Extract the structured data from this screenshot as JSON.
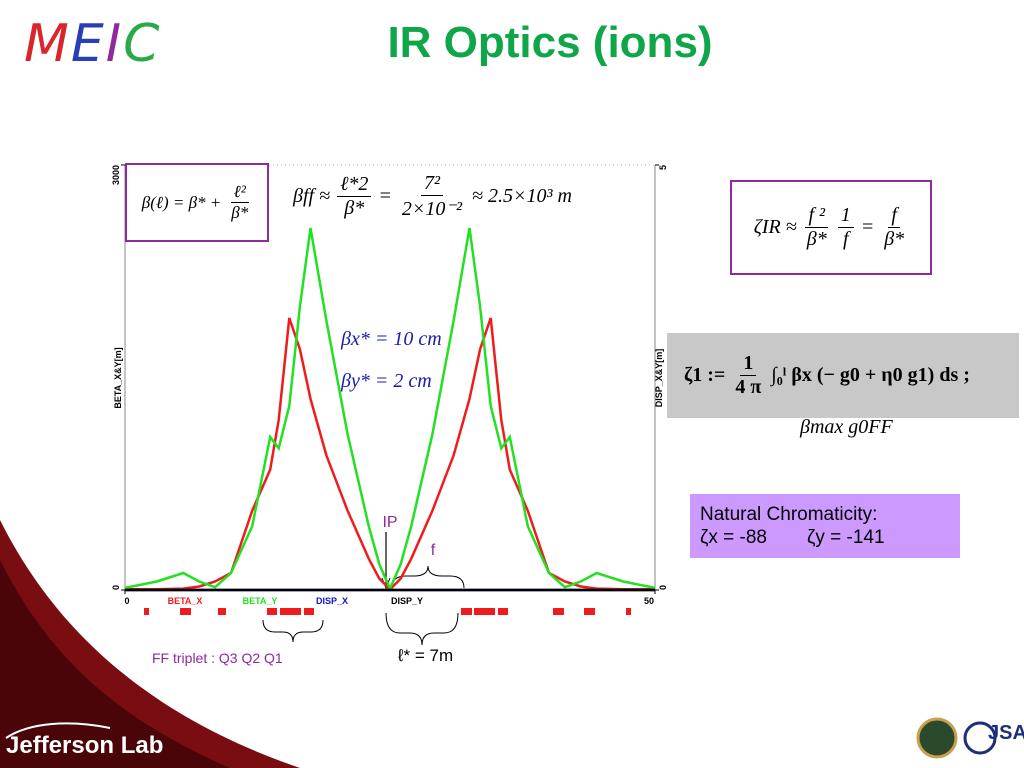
{
  "logo": {
    "letters": [
      "M",
      "E",
      "I",
      "C"
    ]
  },
  "title": "IR Optics (ions)",
  "chart_data": {
    "type": "line",
    "x": [
      0,
      3,
      5.5,
      7,
      8.5,
      10,
      12,
      13.7,
      14.5,
      15.5,
      16.5,
      17.5,
      19,
      21,
      23,
      24,
      25,
      26,
      27,
      29,
      31,
      32.5,
      33.5,
      34.5,
      35.5,
      36.3,
      38,
      40,
      41.5,
      43,
      44.5,
      47,
      50
    ],
    "series": [
      {
        "name": "BETA_X",
        "color": "#ee1c1c",
        "values": [
          5,
          5,
          10,
          25,
          60,
          120,
          560,
          850,
          1200,
          1920,
          1700,
          1350,
          950,
          560,
          220,
          80,
          5,
          80,
          220,
          560,
          950,
          1350,
          1700,
          1920,
          1200,
          850,
          560,
          120,
          60,
          25,
          10,
          5,
          5
        ]
      },
      {
        "name": "BETA_Y",
        "color": "#22e022",
        "values": [
          15,
          60,
          120,
          60,
          20,
          120,
          450,
          1080,
          1000,
          1300,
          2000,
          2555,
          1900,
          1100,
          450,
          180,
          10,
          180,
          450,
          1100,
          1900,
          2555,
          2000,
          1300,
          1000,
          1080,
          450,
          120,
          20,
          60,
          120,
          60,
          15
        ]
      },
      {
        "name": "DISP_X",
        "color": "#1010c8",
        "axis": "y2",
        "values": [
          0,
          0,
          0,
          0,
          0,
          0,
          0,
          0,
          0,
          0,
          0,
          0,
          0,
          0,
          0,
          0,
          0,
          0,
          0,
          0,
          0,
          0,
          0,
          0,
          0,
          0,
          0,
          0,
          0,
          0,
          0,
          0,
          0
        ]
      },
      {
        "name": "DISP_Y",
        "color": "#000000",
        "axis": "y2",
        "values": [
          0,
          0,
          0,
          0,
          0,
          0,
          0,
          0,
          0,
          0,
          0,
          0,
          0,
          0,
          0,
          0,
          0,
          0,
          0,
          0,
          0,
          0,
          0,
          0,
          0,
          0,
          0,
          0,
          0,
          0,
          0,
          0,
          0
        ]
      }
    ],
    "xlim": [
      0,
      50
    ],
    "xticks": [
      0,
      50
    ],
    "ylim": [
      0,
      3000
    ],
    "yticks": [
      0,
      3000
    ],
    "y2lim": [
      0,
      5
    ],
    "y2ticks": [
      0,
      5
    ],
    "ylabel": "BETA_X&Y[m]",
    "y2label": "DISP_X&Y[m]",
    "annotations": {
      "ip": "IP",
      "f": "f",
      "lstar": "ℓ* = 7m",
      "triplet": "FF triplet : Q3 Q2 Q1"
    }
  },
  "formulas": {
    "beta_l": [
      "β(ℓ) = β* +",
      {
        "num": "ℓ²",
        "den": "β*"
      }
    ],
    "beta_ff": [
      "βff ≈",
      {
        "num": "ℓ*2",
        "den": "β*"
      },
      "=",
      {
        "num": "7²",
        "den": "2×10⁻²"
      },
      "≈ 2.5×10³ m"
    ],
    "beta_x": [
      "βx* = 10 cm"
    ],
    "beta_y": [
      "βy* = 2 cm"
    ],
    "zeta_ir": [
      "ζIR ≈",
      {
        "num": "f ²",
        "den": "β*"
      },
      {
        "num": "1",
        "den": "f"
      },
      "=",
      {
        "num": "f",
        "den": "β*"
      }
    ],
    "zeta_1": [
      "ζ1 :=",
      {
        "num": "1",
        "den": "4 π"
      },
      "∫₀ˡ βx (− g0 + η0 g1) ds ;"
    ],
    "beta_max": [
      "βmax g0FF"
    ]
  },
  "chromaticity": {
    "heading": "Natural Chromaticity:",
    "zeta_x": "ζx = -88",
    "zeta_y": "ζy = -141"
  },
  "footer": {
    "lab": "Jefferson Lab",
    "jsa": "JSA"
  }
}
